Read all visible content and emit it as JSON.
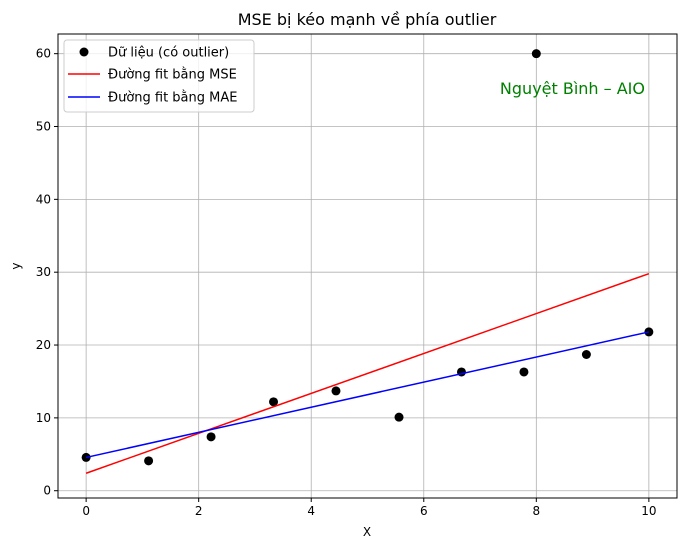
{
  "chart_data": {
    "type": "scatter",
    "title": "MSE bị kéo mạnh về phía outlier",
    "xlabel": "X",
    "ylabel": "y",
    "xlim": [
      -0.5,
      10.5
    ],
    "ylim": [
      -1,
      62.7
    ],
    "xticks": [
      0,
      2,
      4,
      6,
      8,
      10
    ],
    "yticks": [
      0,
      10,
      20,
      30,
      40,
      50,
      60
    ],
    "grid": true,
    "legend_position": "top-left",
    "annotation": {
      "text": "Nguyệt Bình – AIO",
      "color": "#008000"
    },
    "points": {
      "name": "Dữ liệu (có outlier)",
      "color": "#000000",
      "x": [
        0,
        1.11,
        2.22,
        3.33,
        4.44,
        5.56,
        6.67,
        7.78,
        8,
        8.89,
        10
      ],
      "y": [
        4.57,
        4.1,
        7.4,
        12.2,
        13.7,
        10.1,
        16.3,
        16.3,
        60,
        18.7,
        21.8
      ]
    },
    "lines": [
      {
        "name": "Đường fit bằng MSE",
        "color": "#ff0000",
        "x": [
          0,
          10
        ],
        "y": [
          2.4,
          29.8
        ]
      },
      {
        "name": "Đường fit bằng MAE",
        "color": "#0000ff",
        "x": [
          0,
          10
        ],
        "y": [
          4.57,
          21.8
        ]
      }
    ]
  }
}
